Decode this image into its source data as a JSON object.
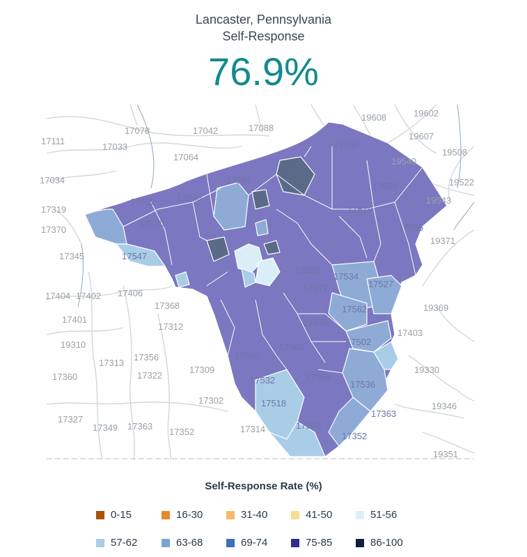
{
  "header": {
    "place": "Lancaster, Pennsylvania",
    "metric": "Self-Response",
    "rate": "76.9%"
  },
  "map": {
    "outside_zips": [
      "17078",
      "17042",
      "17088",
      "19608",
      "19602",
      "17111",
      "17033",
      "17064",
      "19607",
      "19508",
      "19540",
      "17034",
      "19522",
      "19543",
      "17319",
      "17370",
      "19371",
      "17345",
      "17404",
      "17402",
      "17406",
      "19369",
      "17401",
      "17403",
      "19310",
      "17313",
      "17356",
      "17360",
      "17322",
      "17309",
      "19330",
      "17302",
      "19346",
      "17327",
      "17349",
      "17363",
      "17352",
      "17314",
      "19351",
      "17368",
      "17312"
    ],
    "inside_zips": [
      "17569",
      "17522",
      "17545",
      "17584",
      "17507",
      "17519",
      "17570",
      "17555",
      "17547",
      "17534",
      "17527",
      "17572",
      "17562",
      "17579",
      "17560",
      "17502",
      "17565",
      "17532",
      "17566",
      "17536",
      "17518",
      "17563",
      "17352",
      "17363",
      "17520"
    ],
    "colors": {
      "purple": "#7b77c0",
      "light_blue": "#a9cde6",
      "mid_blue": "#8eabd6",
      "slate": "#5b6a87",
      "pale": "#d9eef6"
    }
  },
  "legend": {
    "title": "Self-Response Rate (%)",
    "items": [
      {
        "label": "0-15",
        "color": "#a8520b"
      },
      {
        "label": "16-30",
        "color": "#e8882a"
      },
      {
        "label": "31-40",
        "color": "#f7b96a"
      },
      {
        "label": "41-50",
        "color": "#fbdc94"
      },
      {
        "label": "51-56",
        "color": "#ddf1f6"
      },
      {
        "label": "57-62",
        "color": "#a9cde6"
      },
      {
        "label": "63-68",
        "color": "#78a6d3"
      },
      {
        "label": "69-74",
        "color": "#3f6fb5"
      },
      {
        "label": "75-85",
        "color": "#2e2f8a"
      },
      {
        "label": "86-100",
        "color": "#0f1e3c"
      }
    ]
  }
}
